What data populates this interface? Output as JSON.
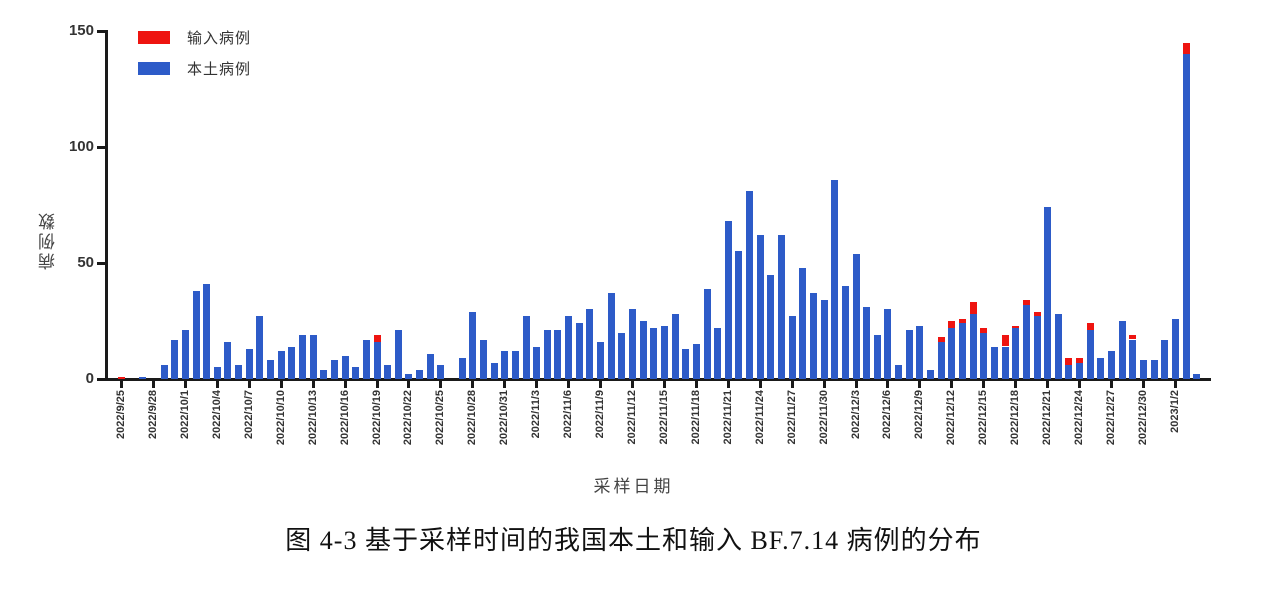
{
  "caption": "图 4-3 基于采样时间的我国本土和输入 BF.7.14 病例的分布",
  "colors": {
    "imported": "#EE1410",
    "local": "#2D5BC8",
    "axis": "#1A1A1A",
    "text": "#333333"
  },
  "chart_data": {
    "type": "bar",
    "stacked": true,
    "title": "",
    "xlabel": "采样日期",
    "ylabel": "病例数",
    "ylim": [
      0,
      150
    ],
    "y_ticks": [
      0,
      50,
      100,
      150
    ],
    "x_tick_every": 3,
    "legend_position": "top-left",
    "grid": false,
    "categories": [
      "2022/9/25",
      "2022/9/26",
      "2022/9/27",
      "2022/9/28",
      "2022/9/29",
      "2022/9/30",
      "2022/10/1",
      "2022/10/2",
      "2022/10/3",
      "2022/10/4",
      "2022/10/5",
      "2022/10/6",
      "2022/10/7",
      "2022/10/8",
      "2022/10/9",
      "2022/10/10",
      "2022/10/11",
      "2022/10/12",
      "2022/10/13",
      "2022/10/14",
      "2022/10/15",
      "2022/10/16",
      "2022/10/17",
      "2022/10/18",
      "2022/10/19",
      "2022/10/20",
      "2022/10/21",
      "2022/10/22",
      "2022/10/23",
      "2022/10/24",
      "2022/10/25",
      "2022/10/26",
      "2022/10/27",
      "2022/10/28",
      "2022/10/29",
      "2022/10/30",
      "2022/10/31",
      "2022/11/1",
      "2022/11/2",
      "2022/11/3",
      "2022/11/4",
      "2022/11/5",
      "2022/11/6",
      "2022/11/7",
      "2022/11/8",
      "2022/11/9",
      "2022/11/10",
      "2022/11/11",
      "2022/11/12",
      "2022/11/13",
      "2022/11/14",
      "2022/11/15",
      "2022/11/16",
      "2022/11/17",
      "2022/11/18",
      "2022/11/19",
      "2022/11/20",
      "2022/11/21",
      "2022/11/22",
      "2022/11/23",
      "2022/11/24",
      "2022/11/25",
      "2022/11/26",
      "2022/11/27",
      "2022/11/28",
      "2022/11/29",
      "2022/11/30",
      "2022/12/1",
      "2022/12/2",
      "2022/12/3",
      "2022/12/4",
      "2022/12/5",
      "2022/12/6",
      "2022/12/7",
      "2022/12/8",
      "2022/12/9",
      "2022/12/10",
      "2022/12/11",
      "2022/12/12",
      "2022/12/13",
      "2022/12/14",
      "2022/12/15",
      "2022/12/16",
      "2022/12/17",
      "2022/12/18",
      "2022/12/19",
      "2022/12/20",
      "2022/12/21",
      "2022/12/22",
      "2022/12/23",
      "2022/12/24",
      "2022/12/25",
      "2022/12/26",
      "2022/12/27",
      "2022/12/28",
      "2022/12/29",
      "2022/12/30",
      "2022/12/31",
      "2023/1/1",
      "2023/1/2",
      "2023/1/3",
      "2023/1/4"
    ],
    "series": [
      {
        "name": "输入病例",
        "color": "#EE1410",
        "values": [
          1,
          0,
          0,
          0,
          0,
          0,
          0,
          0,
          0,
          0,
          0,
          0,
          0,
          0,
          0,
          0,
          0,
          0,
          0,
          0,
          0,
          0,
          0,
          0,
          3,
          0,
          0,
          0,
          0,
          0,
          0,
          0,
          0,
          0,
          0,
          0,
          0,
          0,
          0,
          0,
          0,
          0,
          0,
          0,
          0,
          0,
          0,
          0,
          0,
          0,
          0,
          0,
          0,
          0,
          0,
          0,
          0,
          0,
          0,
          0,
          0,
          0,
          0,
          0,
          0,
          0,
          0,
          0,
          0,
          0,
          0,
          0,
          0,
          0,
          0,
          0,
          0,
          2,
          3,
          2,
          5,
          2,
          0,
          5,
          1,
          2,
          2,
          0,
          0,
          3,
          2,
          3,
          0,
          0,
          0,
          2,
          0,
          0,
          0,
          0,
          5,
          0
        ]
      },
      {
        "name": "本土病例",
        "color": "#2D5BC8",
        "values": [
          0,
          0,
          1,
          0,
          6,
          17,
          21,
          38,
          41,
          5,
          16,
          6,
          13,
          27,
          8,
          12,
          14,
          19,
          19,
          4,
          8,
          10,
          5,
          17,
          16,
          6,
          21,
          2,
          4,
          11,
          6,
          0,
          9,
          29,
          17,
          7,
          12,
          12,
          27,
          14,
          21,
          21,
          27,
          24,
          30,
          16,
          37,
          20,
          30,
          25,
          22,
          23,
          28,
          13,
          15,
          39,
          22,
          68,
          55,
          81,
          62,
          45,
          62,
          27,
          48,
          37,
          34,
          86,
          40,
          54,
          31,
          19,
          30,
          6,
          21,
          23,
          4,
          16,
          22,
          24,
          28,
          20,
          14,
          14,
          22,
          32,
          27,
          74,
          28,
          6,
          7,
          21,
          9,
          12,
          25,
          17,
          8,
          8,
          17,
          26,
          140,
          2
        ]
      }
    ]
  }
}
